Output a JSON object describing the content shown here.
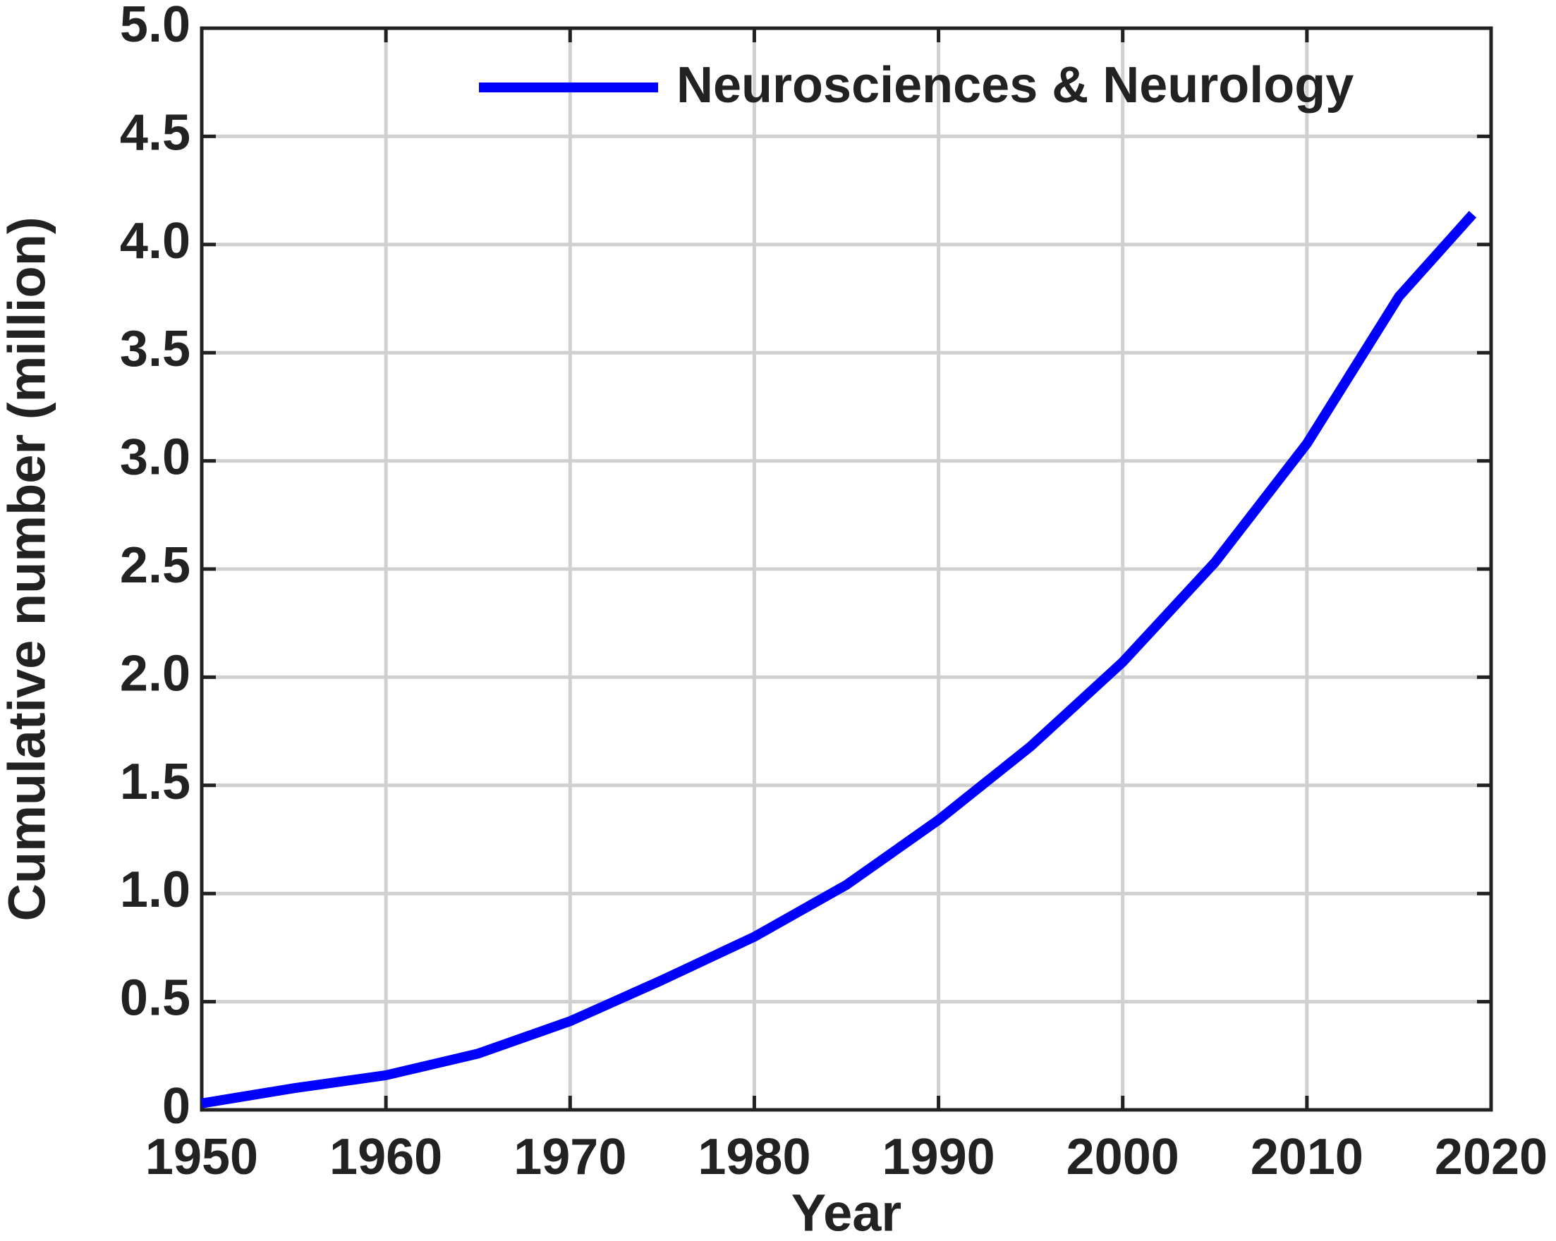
{
  "chart_data": {
    "type": "line",
    "x_label": "Year",
    "y_label": "Cumulative number (million)",
    "x": [
      1950,
      1955,
      1960,
      1965,
      1970,
      1975,
      1980,
      1985,
      1990,
      1995,
      2000,
      2005,
      2010,
      2015,
      2019
    ],
    "series": [
      {
        "name": "Neurosciences & Neurology",
        "color": "#0000ff",
        "values": [
          0.03,
          0.1,
          0.16,
          0.26,
          0.41,
          0.6,
          0.8,
          1.04,
          1.34,
          1.68,
          2.07,
          2.53,
          3.08,
          3.76,
          4.14
        ]
      }
    ],
    "xlim": [
      1950,
      2020
    ],
    "xticks": [
      1950,
      1960,
      1970,
      1980,
      1990,
      2000,
      2010,
      2020
    ],
    "ylim": [
      0,
      5
    ],
    "yticks": [
      0,
      0.5,
      {
        "value": 1,
        "label": "1.0"
      },
      1.5,
      {
        "value": 2,
        "label": "2.0"
      },
      2.5,
      {
        "value": 3,
        "label": "3.0"
      },
      3.5,
      {
        "value": 4,
        "label": "4.0"
      },
      4.5,
      {
        "value": 5,
        "label": "5.0"
      }
    ],
    "grid": true,
    "legend": "top-right"
  }
}
